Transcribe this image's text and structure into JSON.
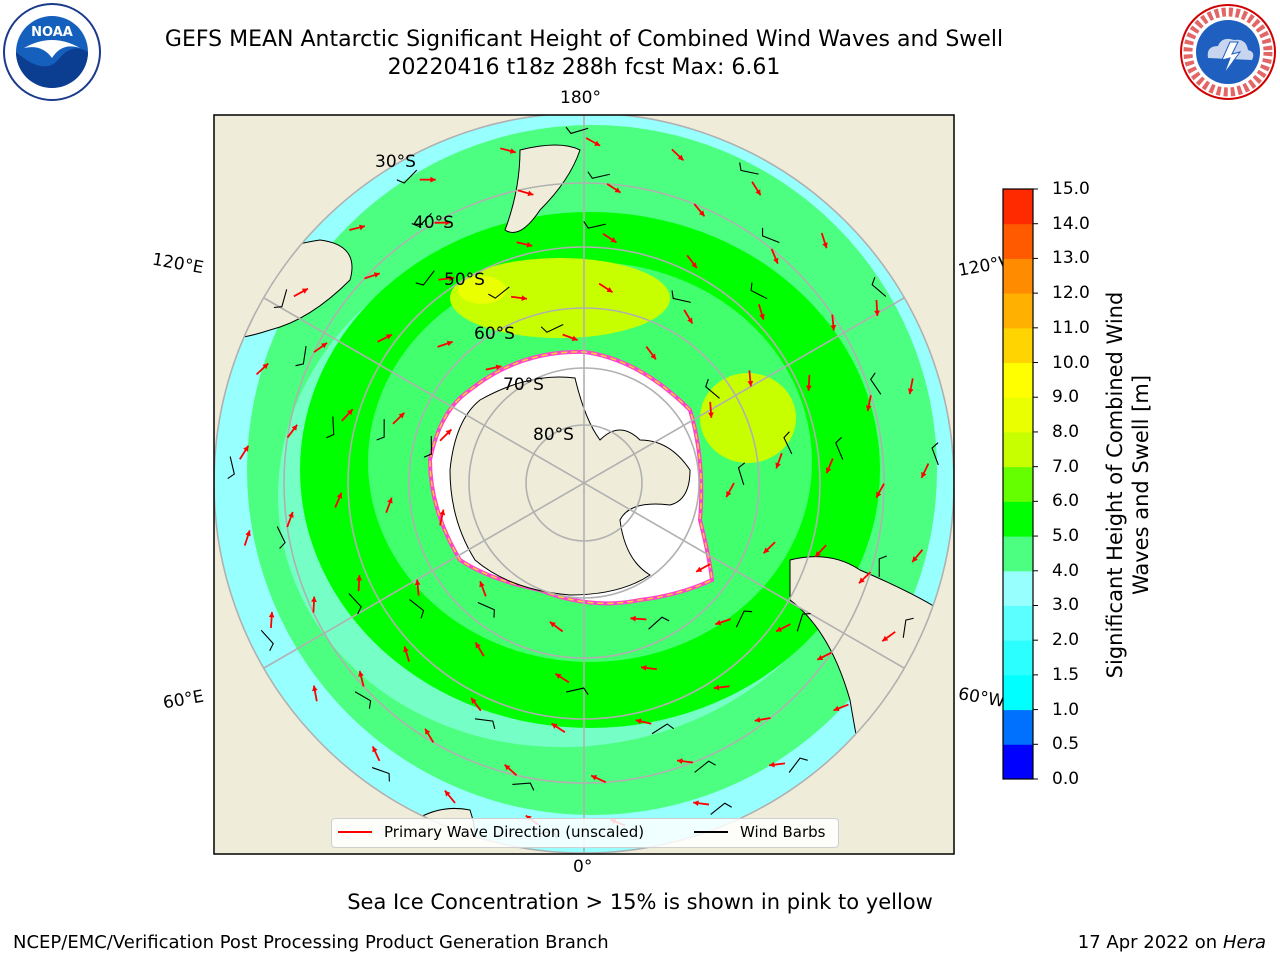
{
  "header": {
    "title_line1": "GEFS MEAN Antarctic Significant Height of Combined Wind Waves and Swell",
    "title_line2": "20220416 t18z 288h fcst   Max: 6.61"
  },
  "logos": {
    "left": "noaa-logo",
    "right": "nws-logo"
  },
  "map": {
    "projection": "south-polar-stereographic",
    "longitude_labels": {
      "top": "180°",
      "upper_left": "120°E",
      "upper_right": "120°W",
      "lower_left": "60°E",
      "lower_right": "60°W",
      "bottom": "0°"
    },
    "latitude_labels": [
      "30°S",
      "40°S",
      "50°S",
      "60°S",
      "70°S",
      "80°S"
    ],
    "colors": {
      "land": "#efedda",
      "ice": "#ffffff",
      "ocean_bg": "#ffffff",
      "grid": "#b0b0b0",
      "ice_edge_pink": "#ff44cc",
      "ice_edge_yellow": "#ffcc33"
    }
  },
  "colorbar": {
    "title": "Significant Height of Combined Wind Waves and Swell [m]",
    "ticks": [
      "0.0",
      "0.5",
      "1.0",
      "1.5",
      "2.0",
      "3.0",
      "4.0",
      "5.0",
      "6.0",
      "7.0",
      "8.0",
      "9.0",
      "10.0",
      "11.0",
      "12.0",
      "13.0",
      "14.0",
      "15.0"
    ],
    "colors": [
      "#0000ff",
      "#0070ff",
      "#00ffff",
      "#2bffff",
      "#5bffff",
      "#98ffff",
      "#4dff80",
      "#00ff00",
      "#66ff00",
      "#c8ff00",
      "#eaff00",
      "#ffff00",
      "#ffd400",
      "#ffb000",
      "#ff8c00",
      "#ff5a00",
      "#ff2a00"
    ]
  },
  "legend": {
    "wave_dir": "Primary Wave Direction (unscaled)",
    "wind_barbs": "Wind Barbs",
    "wave_color": "#ff0000",
    "barb_color": "#000000"
  },
  "footer": {
    "ice_note": "Sea Ice Concentration > 15% is shown in pink to yellow",
    "branch": "NCEP/EMC/Verification Post Processing Product Generation Branch",
    "date": "17 Apr 2022 on",
    "host": "Hera"
  }
}
